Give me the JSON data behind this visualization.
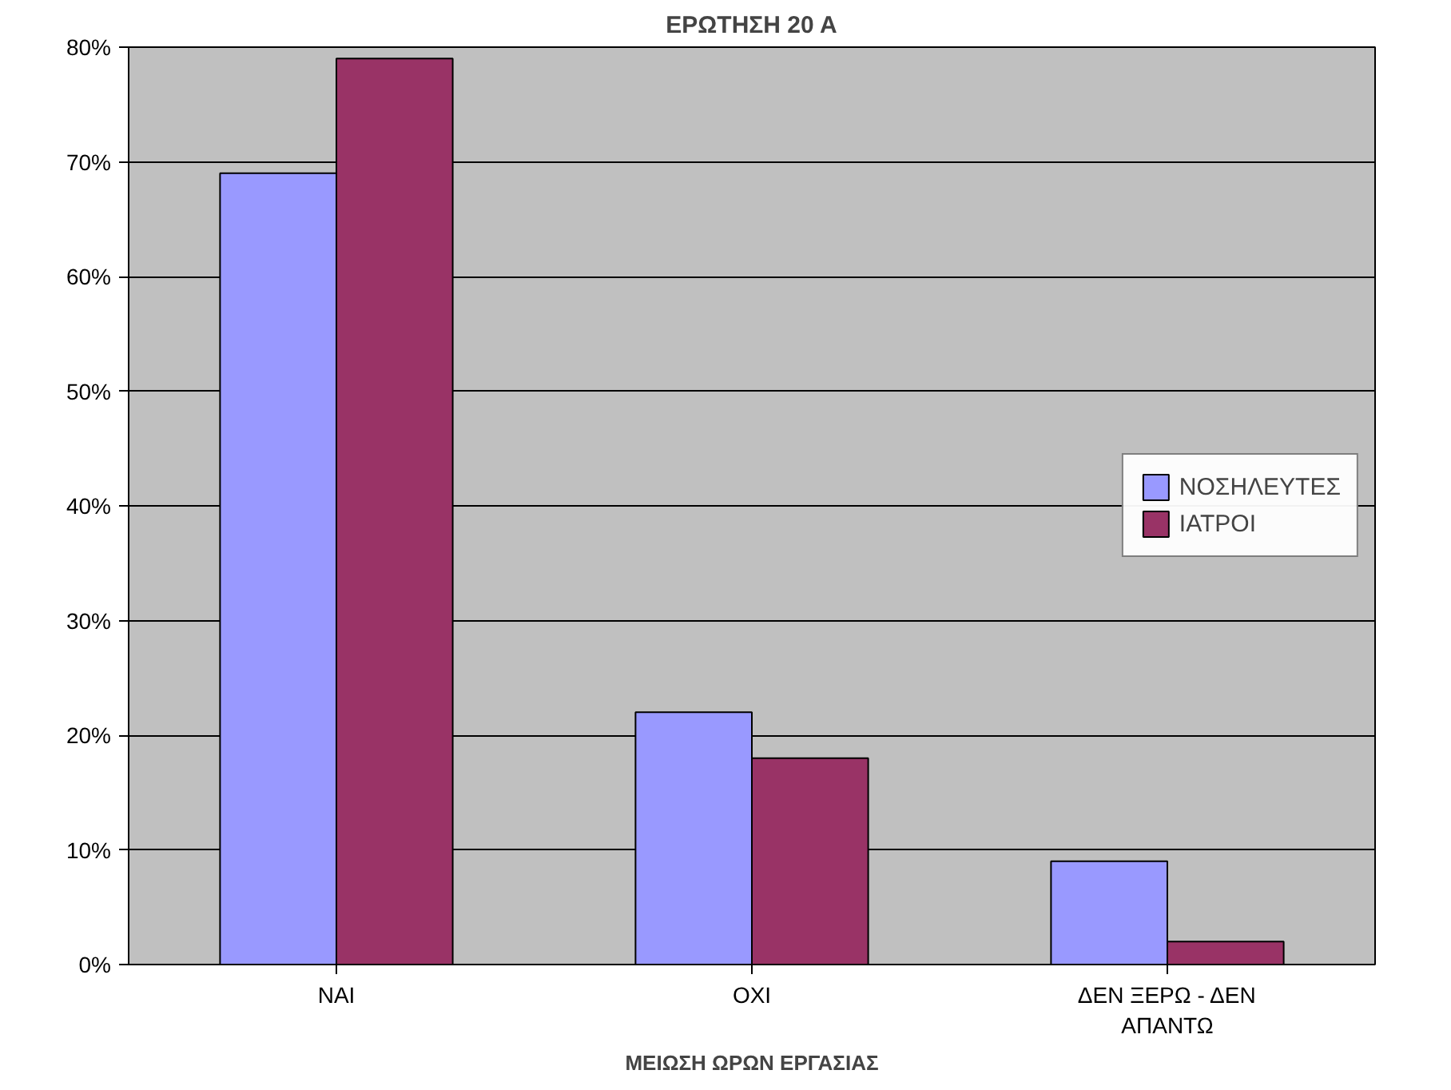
{
  "chart_data": {
    "type": "bar",
    "title": "ΕΡΩΤΗΣΗ 20 Α",
    "xlabel": "ΜΕΙΩΣΗ ΩΡΩΝ ΕΡΓΑΣΙΑΣ",
    "categories": [
      "ΝΑΙ",
      "ΟΧΙ",
      "ΔΕΝ ΞΕΡΩ - ΔΕΝ ΑΠΑΝΤΩ"
    ],
    "series": [
      {
        "name": "ΝΟΣΗΛΕΥΤΕΣ",
        "color": "#9999ff",
        "values": [
          69,
          22,
          9
        ]
      },
      {
        "name": "ΙΑΤΡΟΙ",
        "color": "#993366",
        "values": [
          79,
          18,
          2
        ]
      }
    ],
    "ylim": [
      0,
      80
    ],
    "yticks": [
      {
        "value": 0,
        "label": "0%"
      },
      {
        "value": 10,
        "label": "10%"
      },
      {
        "value": 20,
        "label": "20%"
      },
      {
        "value": 30,
        "label": "30%"
      },
      {
        "value": 40,
        "label": "40%"
      },
      {
        "value": 50,
        "label": "50%"
      },
      {
        "value": 60,
        "label": "60%"
      },
      {
        "value": 70,
        "label": "70%"
      },
      {
        "value": 80,
        "label": "80%"
      }
    ],
    "grid": "y",
    "legend": "right"
  }
}
